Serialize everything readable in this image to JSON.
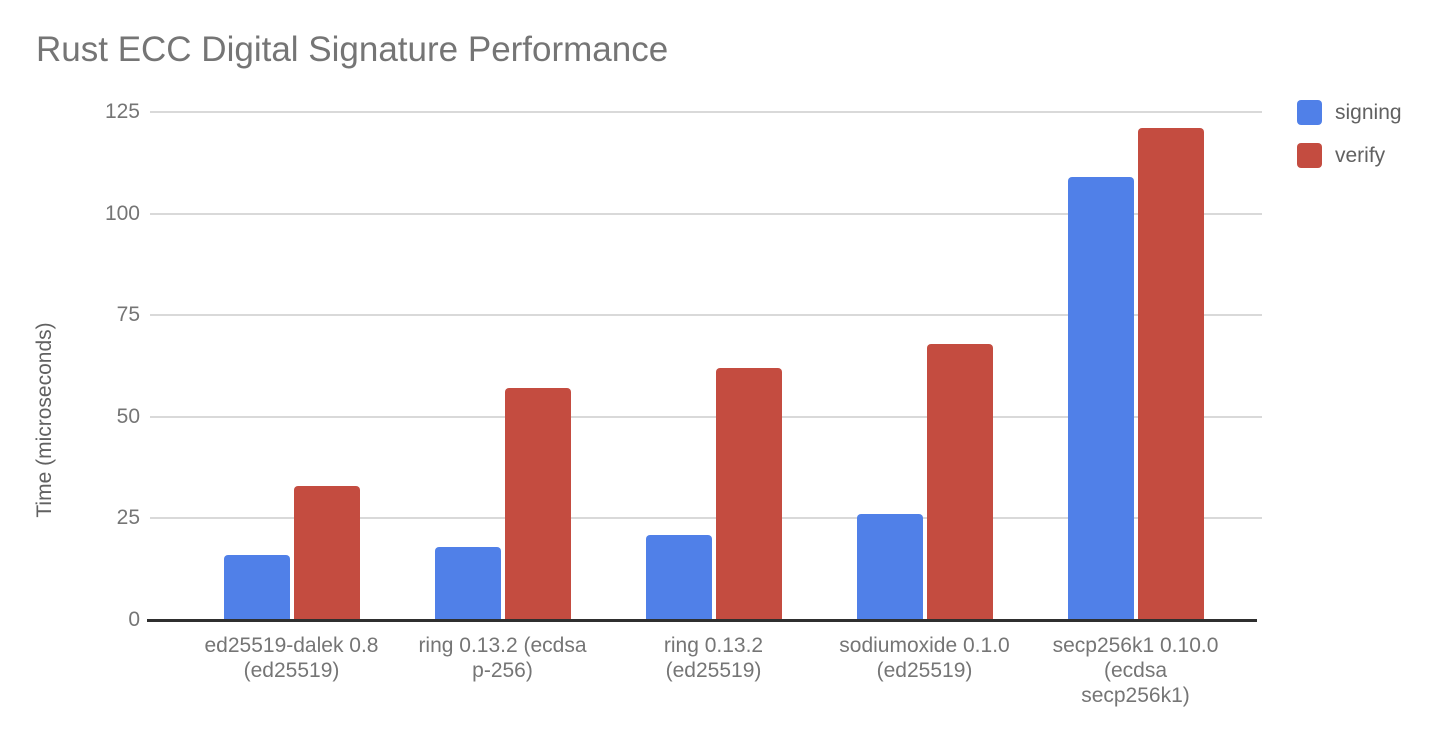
{
  "chart_data": {
    "type": "bar",
    "title": "Rust ECC Digital Signature Performance",
    "ylabel": "Time (microseconds)",
    "xlabel": "",
    "ylim": [
      0,
      125
    ],
    "yticks": [
      0,
      25,
      50,
      75,
      100,
      125
    ],
    "grid": true,
    "legend_position": "right",
    "categories": [
      "ed25519-dalek 0.8 (ed25519)",
      "ring 0.13.2 (ecdsa p-256)",
      "ring 0.13.2 (ed25519)",
      "sodiumoxide 0.1.0 (ed25519)",
      "secp256k1 0.10.0 (ecdsa secp256k1)"
    ],
    "category_lines": [
      [
        "ed25519-dalek 0.8",
        "(ed25519)"
      ],
      [
        "ring 0.13.2 (ecdsa",
        "p-256)"
      ],
      [
        "ring 0.13.2",
        "(ed25519)"
      ],
      [
        "sodiumoxide 0.1.0",
        "(ed25519)"
      ],
      [
        "secp256k1 0.10.0",
        "(ecdsa",
        "secp256k1)"
      ]
    ],
    "series": [
      {
        "name": "signing",
        "color": "#5080e8",
        "values": [
          16,
          18,
          21,
          26,
          109
        ]
      },
      {
        "name": "verify",
        "color": "#c44c40",
        "values": [
          33,
          57,
          62,
          68,
          121
        ]
      }
    ],
    "colors": {
      "axis_line": "#2f2f2f",
      "gridline": "#d9d9d9",
      "title_text": "#757575",
      "tick_text": "#757575",
      "axis_title_text": "#616161",
      "legend_text": "#616161"
    }
  }
}
